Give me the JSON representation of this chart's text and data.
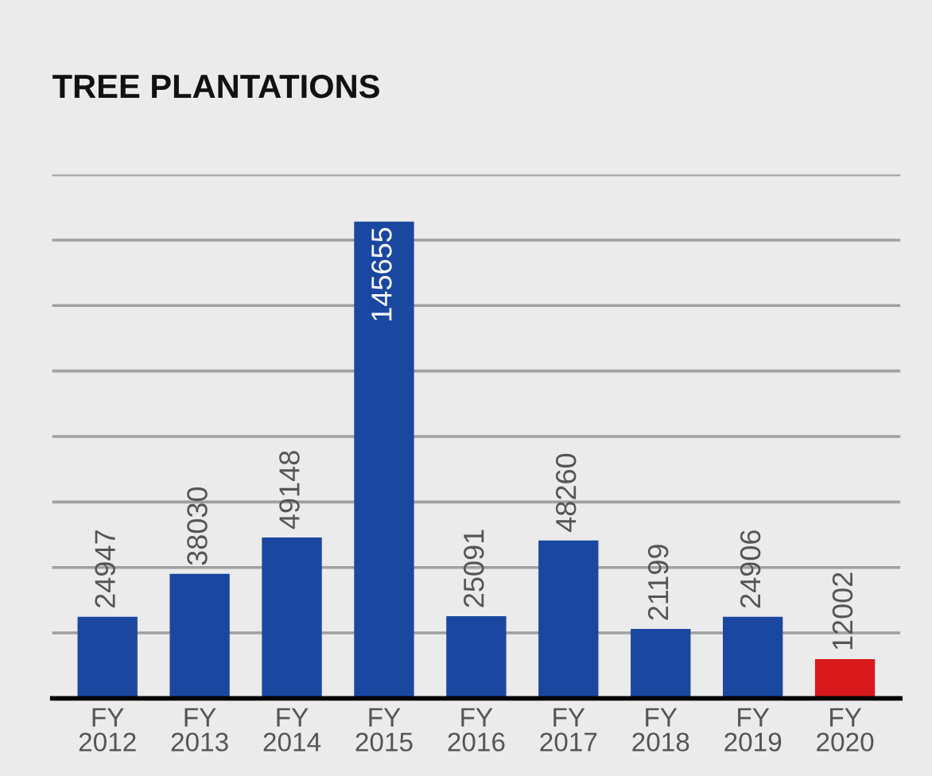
{
  "chart_data": {
    "type": "bar",
    "title": "TREE PLANTATIONS",
    "categories": [
      "FY\n2012",
      "FY\n2013",
      "FY\n2014",
      "FY\n2015",
      "FY\n2016",
      "FY\n2017",
      "FY\n2018",
      "FY\n2019",
      "FY\n2020"
    ],
    "values": [
      24947,
      38030,
      49148,
      145655,
      25091,
      48260,
      21199,
      24906,
      12002
    ],
    "colors": [
      "#1a47a0",
      "#1a47a0",
      "#1a47a0",
      "#1a47a0",
      "#1a47a0",
      "#1a47a0",
      "#1a47a0",
      "#1a47a0",
      "#d7191c"
    ],
    "ylim": [
      0,
      160000
    ],
    "yticks": [
      {
        "value": 20000,
        "label": null
      },
      {
        "value": 40000,
        "label": null
      },
      {
        "value": 60000,
        "label": null
      },
      {
        "value": 80000,
        "label": null
      },
      {
        "value": 100000,
        "label": null
      },
      {
        "value": 120000,
        "label": null
      },
      {
        "value": 140000,
        "label": null
      },
      {
        "value": 160000,
        "label": null
      }
    ],
    "grid": "y",
    "tick_labels": "x",
    "data_labels": true
  }
}
